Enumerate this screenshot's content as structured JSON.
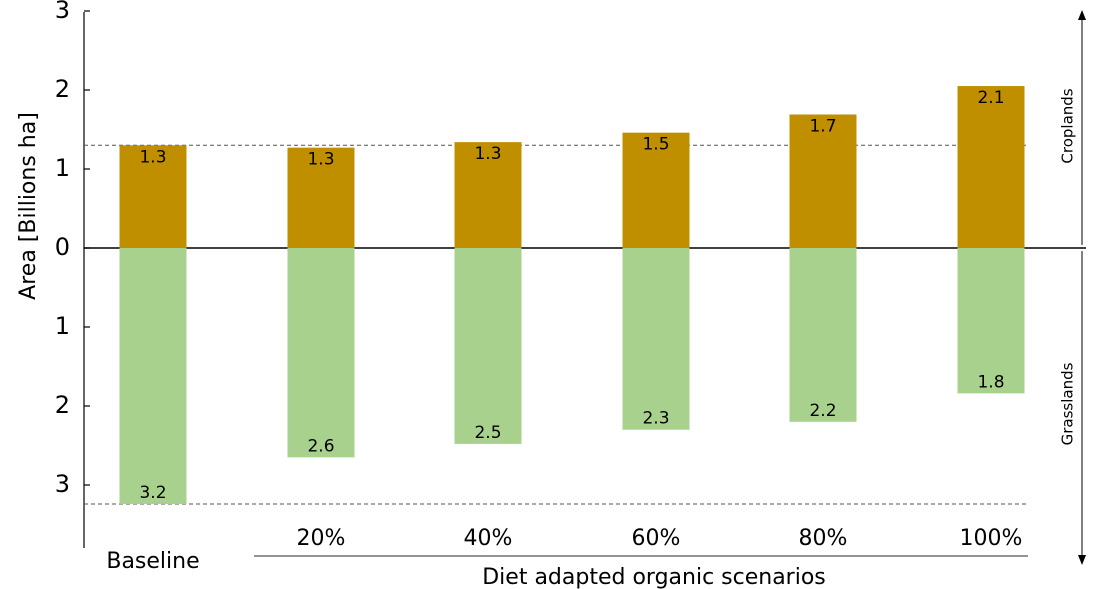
{
  "chart_data": {
    "type": "bar",
    "categories": [
      "Baseline",
      "20%",
      "40%",
      "60%",
      "80%",
      "100%"
    ],
    "series": [
      {
        "name": "Croplands",
        "values": [
          1.3,
          1.27,
          1.34,
          1.46,
          1.69,
          2.05
        ],
        "labels": [
          "1.3",
          "1.3",
          "1.3",
          "1.5",
          "1.7",
          "2.1"
        ],
        "color": "#bf8f00"
      },
      {
        "name": "Grasslands",
        "values": [
          3.24,
          2.65,
          2.48,
          2.3,
          2.2,
          1.84
        ],
        "labels": [
          "3.2",
          "2.6",
          "2.5",
          "2.3",
          "2.2",
          "1.8"
        ],
        "color": "#a9d18e"
      }
    ],
    "ylabel": "Area [Billions ha]",
    "xlabel": "Diet adapted organic scenarios",
    "ylim": [
      -3,
      3
    ],
    "y_ticks": [
      {
        "value": 3,
        "label": "3"
      },
      {
        "value": 2,
        "label": "2"
      },
      {
        "value": 1,
        "label": "1"
      },
      {
        "value": 0,
        "label": "0"
      },
      {
        "value": -1,
        "label": "1"
      },
      {
        "value": -2,
        "label": "2"
      },
      {
        "value": -3,
        "label": "3"
      }
    ],
    "reference_lines": [
      1.3,
      -3.24
    ],
    "grid": false
  }
}
